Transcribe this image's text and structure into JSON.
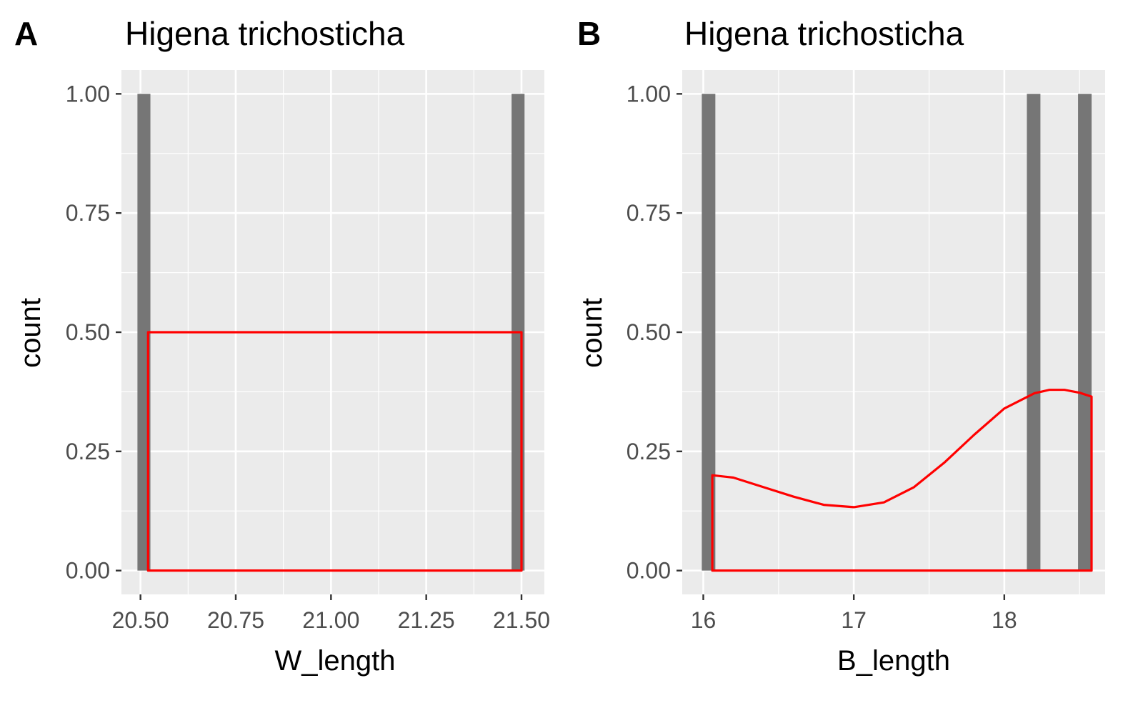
{
  "chart_data": [
    {
      "panel_tag": "A",
      "type": "bar",
      "title": "Higena trichosticha",
      "xlabel": "W_length",
      "ylabel": "count",
      "xlim": [
        20.45,
        21.56
      ],
      "ylim": [
        -0.05,
        1.05
      ],
      "x_ticks": [
        {
          "value": 20.5,
          "label": "20.50"
        },
        {
          "value": 20.75,
          "label": "20.75"
        },
        {
          "value": 21.0,
          "label": "21.00"
        },
        {
          "value": 21.25,
          "label": "21.25"
        },
        {
          "value": 21.5,
          "label": "21.50"
        }
      ],
      "y_ticks": [
        {
          "value": 0,
          "label": "0.00"
        },
        {
          "value": 0.25,
          "label": "0.25"
        },
        {
          "value": 0.5,
          "label": "0.50"
        },
        {
          "value": 0.75,
          "label": "0.75"
        },
        {
          "value": 1.0,
          "label": "1.00"
        }
      ],
      "bars": [
        {
          "xmin": 20.492,
          "xmax": 20.526,
          "count": 1
        },
        {
          "xmin": 21.474,
          "xmax": 21.508,
          "count": 1
        }
      ],
      "density": {
        "x": [
          20.52,
          20.52,
          21.5,
          21.5
        ],
        "y": [
          0,
          0.5,
          0.5,
          0
        ],
        "closed": true
      },
      "grid": true,
      "colors": {
        "panel": "#ebebeb",
        "grid": "#ffffff",
        "bar": "#767676",
        "density": "#ff0000"
      }
    },
    {
      "panel_tag": "B",
      "type": "bar",
      "title": "Higena trichosticha",
      "xlabel": "B_length",
      "ylabel": "count",
      "xlim": [
        15.86,
        18.67
      ],
      "ylim": [
        -0.05,
        1.05
      ],
      "x_ticks": [
        {
          "value": 16,
          "label": "16"
        },
        {
          "value": 17,
          "label": "17"
        },
        {
          "value": 18,
          "label": "18"
        }
      ],
      "y_ticks": [
        {
          "value": 0,
          "label": "0.00"
        },
        {
          "value": 0.25,
          "label": "0.25"
        },
        {
          "value": 0.5,
          "label": "0.50"
        },
        {
          "value": 0.75,
          "label": "0.75"
        },
        {
          "value": 1.0,
          "label": "1.00"
        }
      ],
      "bars": [
        {
          "xmin": 15.99,
          "xmax": 16.08,
          "count": 1
        },
        {
          "xmin": 18.15,
          "xmax": 18.24,
          "count": 1
        },
        {
          "xmin": 18.49,
          "xmax": 18.58,
          "count": 1
        }
      ],
      "density": {
        "x": [
          16.06,
          16.06,
          16.2,
          16.4,
          16.6,
          16.8,
          17.0,
          17.2,
          17.4,
          17.6,
          17.8,
          18.0,
          18.2,
          18.3,
          18.4,
          18.5,
          18.58,
          18.58
        ],
        "y": [
          0,
          0.2,
          0.195,
          0.175,
          0.155,
          0.138,
          0.133,
          0.143,
          0.175,
          0.226,
          0.285,
          0.34,
          0.372,
          0.379,
          0.379,
          0.373,
          0.365,
          0
        ],
        "closed": true
      },
      "grid": true,
      "colors": {
        "panel": "#ebebeb",
        "grid": "#ffffff",
        "bar": "#767676",
        "density": "#ff0000"
      }
    }
  ]
}
